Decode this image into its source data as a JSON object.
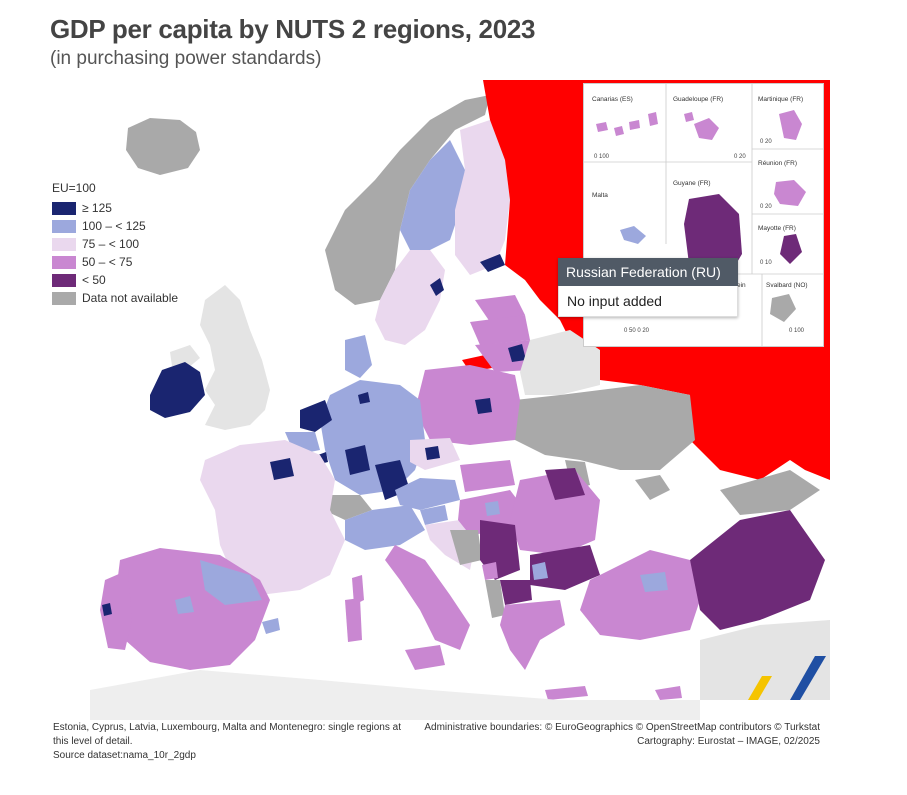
{
  "title": "GDP per capita by NUTS 2 regions, 2023",
  "subtitle": "(in purchasing power standards)",
  "legend": {
    "title": "EU=100",
    "items": [
      {
        "label": "≥ 125",
        "color": "#1a2570"
      },
      {
        "label": "100 – < 125",
        "color": "#9ca8dd"
      },
      {
        "label": "75 – < 100",
        "color": "#ead8ee"
      },
      {
        "label": "50 – < 75",
        "color": "#c987d1"
      },
      {
        "label": "< 50",
        "color": "#6e2a78"
      },
      {
        "label": "Data not available",
        "color": "#a9a9a9"
      }
    ]
  },
  "highlight_color": "#ff0000",
  "insets": {
    "canarias": {
      "label": "Canarias (ES)",
      "scale": "0   100"
    },
    "guadeloupe": {
      "label": "Guadeloupe (FR)",
      "scale": "0   20"
    },
    "martinique": {
      "label": "Martinique (FR)",
      "scale": "0   20"
    },
    "reunion": {
      "label": "Réunion (FR)",
      "scale": "0   20"
    },
    "malta": {
      "label": "Malta",
      "scale": ""
    },
    "guyane": {
      "label": "Guyane (FR)",
      "scale": "0  50  0  20"
    },
    "mayotte": {
      "label": "Mayotte (FR)",
      "scale": "0  10"
    },
    "liechtenstein": {
      "label": "ein"
    },
    "svalbard": {
      "label": "Svalbard (NO)",
      "scale": "0 100"
    }
  },
  "tooltip": {
    "title": "Russian Federation (RU)",
    "body": "No input added"
  },
  "footnotes": {
    "left_line1": "Estonia, Cyprus, Latvia, Luxembourg, Malta and Montenegro: single regions at",
    "left_line2": "this level of detail.",
    "left_line3": "Source dataset:nama_10r_2gdp",
    "right_line1": "Administrative boundaries: © EuroGeographics © OpenStreetMap contributors © Turkstat",
    "right_line2": "Cartography: Eurostat – IMAGE, 02/2025"
  }
}
